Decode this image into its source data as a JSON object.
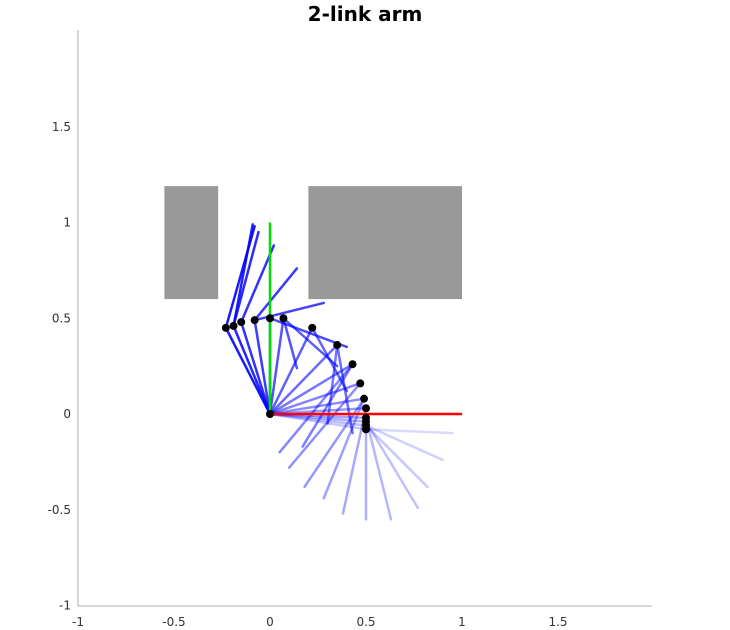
{
  "chart_data": {
    "type": "line",
    "title": "2-link arm",
    "xlabel": "",
    "ylabel": "",
    "xlim": [
      -1,
      2
    ],
    "ylim": [
      -1,
      2
    ],
    "x_ticks": [
      "-1",
      "-0.5",
      "0",
      "0.5",
      "1",
      "1.5"
    ],
    "x_tick_values": [
      -1,
      -0.5,
      0,
      0.5,
      1,
      1.5
    ],
    "y_ticks": [
      "-1",
      "-0.5",
      "0",
      "0.5",
      "1",
      "1.5"
    ],
    "y_tick_values": [
      -1,
      -0.5,
      0,
      0.5,
      1,
      1.5
    ],
    "grid": false,
    "obstacles": [
      {
        "x": [
          -0.55,
          -0.27
        ],
        "y": [
          0.6,
          1.19
        ]
      },
      {
        "x": [
          0.2,
          1.0
        ],
        "y": [
          0.6,
          1.19
        ]
      }
    ],
    "reference_segments": [
      {
        "from": [
          0,
          0
        ],
        "to": [
          1,
          0
        ],
        "color": "#ff0000"
      },
      {
        "from": [
          0,
          0
        ],
        "to": [
          0,
          1
        ],
        "color": "#00dd00"
      }
    ],
    "base": [
      0,
      0
    ],
    "trajectory": {
      "elbows": [
        [
          0.5,
          -0.08
        ],
        [
          0.5,
          -0.06
        ],
        [
          0.5,
          -0.04
        ],
        [
          0.5,
          -0.02
        ],
        [
          0.5,
          0.03
        ],
        [
          0.49,
          0.08
        ],
        [
          0.47,
          0.16
        ],
        [
          0.43,
          0.26
        ],
        [
          0.35,
          0.36
        ],
        [
          0.22,
          0.45
        ],
        [
          0.07,
          0.5
        ],
        [
          0.0,
          0.5
        ],
        [
          -0.08,
          0.49
        ],
        [
          -0.15,
          0.48
        ],
        [
          -0.19,
          0.46
        ],
        [
          -0.23,
          0.45
        ]
      ],
      "tips": [
        [
          0.95,
          -0.1
        ],
        [
          0.9,
          -0.24
        ],
        [
          0.82,
          -0.38
        ],
        [
          0.77,
          -0.49
        ],
        [
          0.63,
          -0.55
        ],
        [
          0.5,
          -0.55
        ],
        [
          0.38,
          -0.52
        ],
        [
          0.28,
          -0.44
        ],
        [
          0.18,
          -0.38
        ],
        [
          0.1,
          -0.28
        ],
        [
          0.05,
          -0.2
        ],
        [
          0.17,
          -0.17
        ],
        [
          0.3,
          -0.05
        ],
        [
          0.43,
          -0.1
        ],
        [
          0.4,
          0.12
        ],
        [
          0.35,
          0.25
        ],
        [
          0.14,
          0.24
        ],
        [
          0.4,
          0.35
        ],
        [
          0.28,
          0.58
        ],
        [
          0.14,
          0.76
        ],
        [
          0.02,
          0.88
        ],
        [
          -0.06,
          0.95
        ],
        [
          -0.09,
          0.99
        ],
        [
          -0.08,
          0.98
        ]
      ],
      "color": "#0000ff"
    }
  }
}
